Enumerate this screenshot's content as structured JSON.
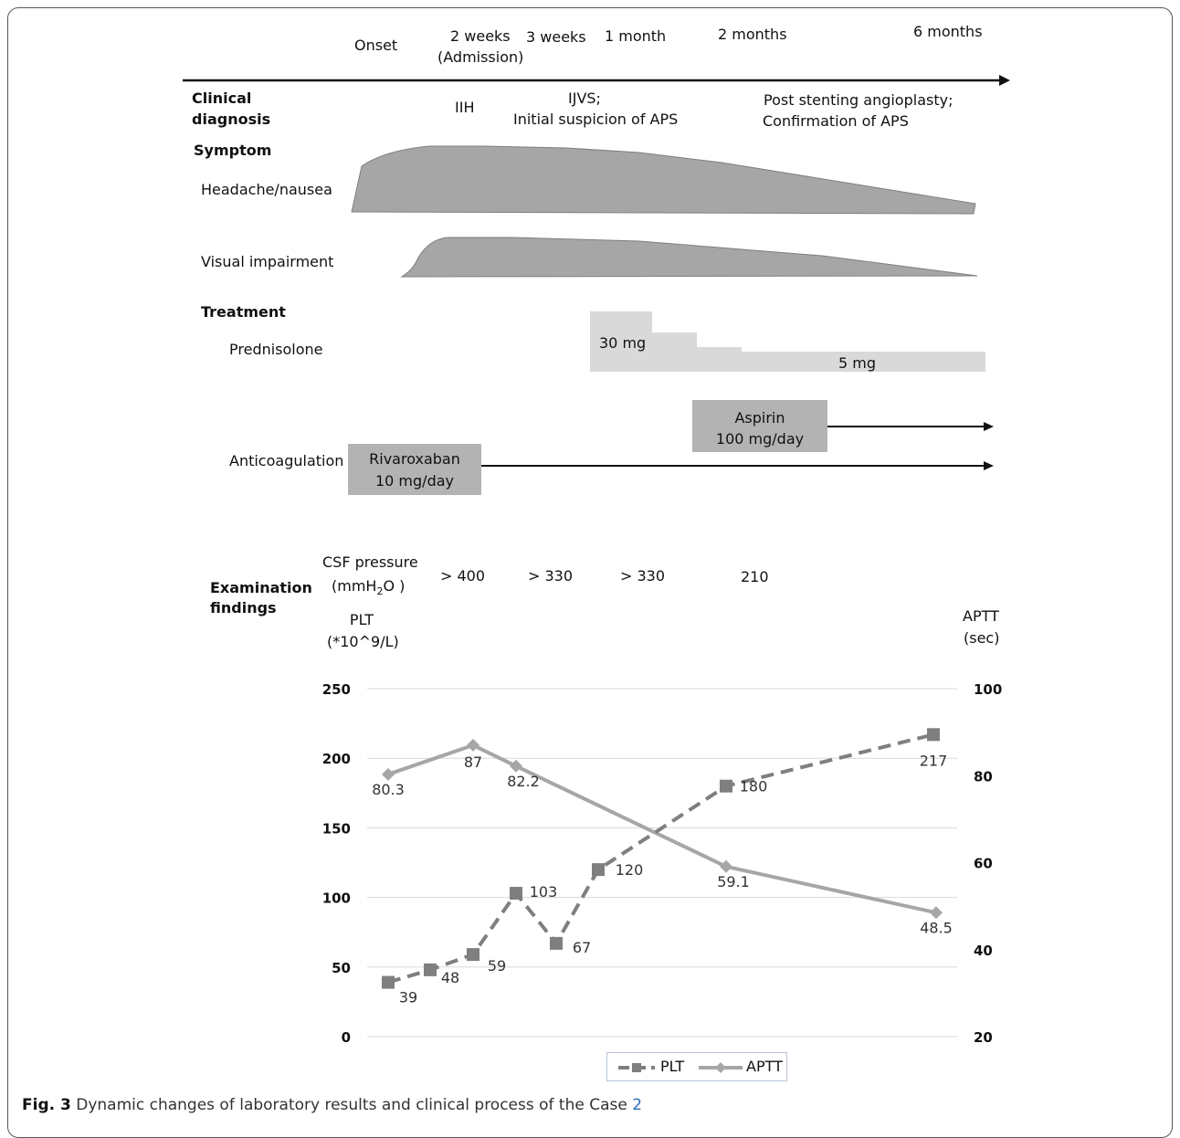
{
  "timeline": {
    "labels": [
      {
        "key": "onset",
        "text": "Onset"
      },
      {
        "key": "w2",
        "text": "2 weeks"
      },
      {
        "key": "w2b",
        "text": "(Admission)"
      },
      {
        "key": "w3",
        "text": "3 weeks"
      },
      {
        "key": "m1",
        "text": "1 month"
      },
      {
        "key": "m2",
        "text": "2 months"
      },
      {
        "key": "m6",
        "text": "6 months"
      }
    ]
  },
  "clinical": {
    "heading_1": "Clinical",
    "heading_2": "diagnosis",
    "iih": "IIH",
    "ijvs_1": "IJVS;",
    "ijvs_2": "Initial suspicion of APS",
    "post_1": "Post stenting angioplasty;",
    "post_2": "Confirmation of APS"
  },
  "symptom": {
    "heading": "Symptom",
    "headache": "Headache/nausea",
    "visual": "Visual impairment"
  },
  "treatment": {
    "heading": "Treatment",
    "prednisolone": "Prednisolone",
    "dose_30": "30 mg",
    "dose_5": "5 mg",
    "anticoagulation": "Anticoagulation",
    "rivaroxaban_1": "Rivaroxaban",
    "rivaroxaban_2": "10 mg/day",
    "aspirin_1": "Aspirin",
    "aspirin_2": "100 mg/day"
  },
  "examination": {
    "heading_1": "Examination",
    "heading_2": "findings",
    "csf_label_1": "CSF pressure",
    "csf_label_2_a": "(mmH",
    "csf_label_2_sub": "2",
    "csf_label_2_b": "O )",
    "csf_values": [
      "> 400",
      "> 330",
      "> 330",
      "210"
    ]
  },
  "colors": {
    "symptom_fill": "#a6a6a6",
    "treatment_light": "#d9d9d9",
    "treatment_dark": "#b3b3b3",
    "plt_series": "#7f7f7f",
    "aptt_series": "#a6a6a6",
    "grid": "#d9d9d9"
  },
  "chart_data": {
    "type": "line",
    "left_axis_label_1": "PLT",
    "left_axis_label_2": "(*10^9/L)",
    "right_axis_label_1": "APTT",
    "right_axis_label_2": "(sec)",
    "left_ticks": [
      "250",
      "200",
      "150",
      "100",
      "50",
      "0"
    ],
    "right_ticks": [
      "100",
      "80",
      "60",
      "40",
      "20"
    ],
    "ylim_left": [
      0,
      250
    ],
    "ylim_right": [
      20,
      100
    ],
    "series": [
      {
        "name": "PLT",
        "axis": "left",
        "style": "dashed",
        "marker": "square",
        "values": [
          39,
          48,
          59,
          103,
          67,
          120,
          180,
          217
        ],
        "labels": [
          "39",
          "48",
          "59",
          "103",
          "67",
          "120",
          "180",
          "217"
        ]
      },
      {
        "name": "APTT",
        "axis": "right",
        "style": "solid",
        "marker": "diamond",
        "values": [
          80.3,
          87,
          82.2,
          59.1,
          48.5
        ],
        "labels": [
          "80.3",
          "87",
          "82.2",
          "59.1",
          "48.5"
        ]
      }
    ],
    "legend": [
      "PLT",
      "APTT"
    ],
    "legend_position": "bottom-center"
  },
  "caption": {
    "fig": "Fig. 3",
    "text": " Dynamic changes of laboratory results and clinical process of the Case ",
    "ref": "2"
  }
}
